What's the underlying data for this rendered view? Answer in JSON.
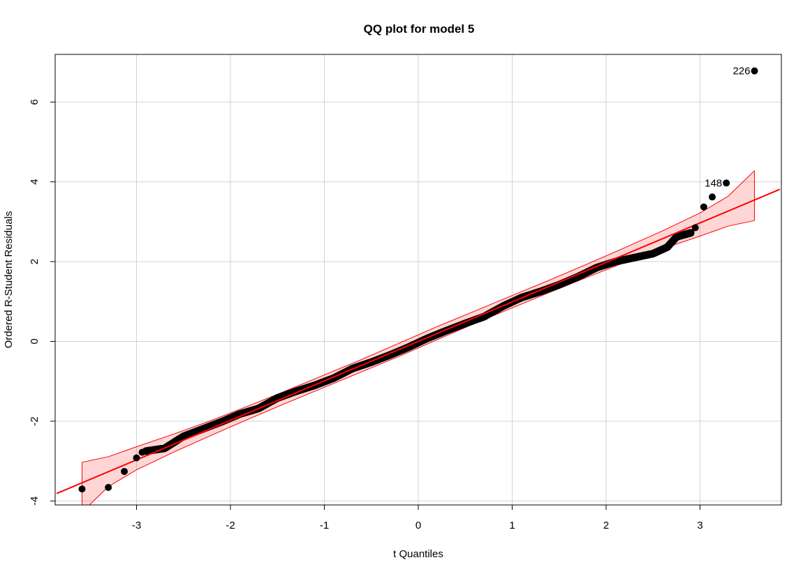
{
  "chart_data": {
    "type": "scatter",
    "title": "QQ plot for model 5",
    "xlabel": "t Quantiles",
    "ylabel": "Ordered R-Student Residuals",
    "xlim": [
      -3.85,
      3.85
    ],
    "ylim": [
      -4.1,
      7.2
    ],
    "x_ticks": [
      -3,
      -2,
      -1,
      0,
      1,
      2,
      3
    ],
    "y_ticks": [
      -4,
      -2,
      0,
      2,
      4,
      6
    ],
    "grid": true,
    "reference_line": {
      "intercept": 0.0,
      "slope": 0.99
    },
    "confidence_band": {
      "x": [
        -3.58,
        -3.3,
        -3.0,
        -2.6,
        -2.2,
        -1.8,
        -1.4,
        -1.0,
        -0.6,
        -0.2,
        0.2,
        0.6,
        1.0,
        1.4,
        1.8,
        2.2,
        2.6,
        3.0,
        3.3,
        3.58
      ],
      "upper": [
        -3.03,
        -2.89,
        -2.64,
        -2.32,
        -1.98,
        -1.61,
        -1.23,
        -0.84,
        -0.45,
        -0.04,
        0.37,
        0.76,
        1.15,
        1.54,
        1.94,
        2.35,
        2.77,
        3.22,
        3.64,
        4.28
      ],
      "lower": [
        -4.28,
        -3.64,
        -3.22,
        -2.77,
        -2.35,
        -1.94,
        -1.54,
        -1.15,
        -0.76,
        -0.37,
        0.04,
        0.45,
        0.84,
        1.23,
        1.61,
        1.98,
        2.32,
        2.64,
        2.89,
        3.03
      ]
    },
    "outlier_points": [
      {
        "x": -3.58,
        "y": -3.7
      },
      {
        "x": -3.3,
        "y": -3.66
      },
      {
        "x": -3.13,
        "y": -3.26
      },
      {
        "x": -3.0,
        "y": -2.92
      },
      {
        "x": -2.94,
        "y": -2.78
      },
      {
        "x": 2.95,
        "y": 2.85
      },
      {
        "x": 3.04,
        "y": 3.37
      },
      {
        "x": 3.13,
        "y": 3.62
      },
      {
        "x": 3.28,
        "y": 3.97,
        "label": "148"
      },
      {
        "x": 3.58,
        "y": 6.78,
        "label": "226"
      }
    ],
    "dense_curve": {
      "x": [
        -2.9,
        -2.7,
        -2.5,
        -2.3,
        -2.1,
        -1.9,
        -1.7,
        -1.5,
        -1.3,
        -1.1,
        -0.9,
        -0.7,
        -0.5,
        -0.3,
        -0.1,
        0.1,
        0.3,
        0.5,
        0.7,
        0.9,
        1.1,
        1.3,
        1.5,
        1.7,
        1.9,
        2.1,
        2.3,
        2.5,
        2.65,
        2.75,
        2.9
      ],
      "y": [
        -2.75,
        -2.68,
        -2.38,
        -2.2,
        -2.02,
        -1.82,
        -1.68,
        -1.42,
        -1.25,
        -1.1,
        -0.92,
        -0.68,
        -0.52,
        -0.34,
        -0.14,
        0.08,
        0.27,
        0.45,
        0.62,
        0.88,
        1.1,
        1.25,
        1.42,
        1.62,
        1.85,
        2.0,
        2.1,
        2.2,
        2.36,
        2.62,
        2.72
      ]
    }
  }
}
